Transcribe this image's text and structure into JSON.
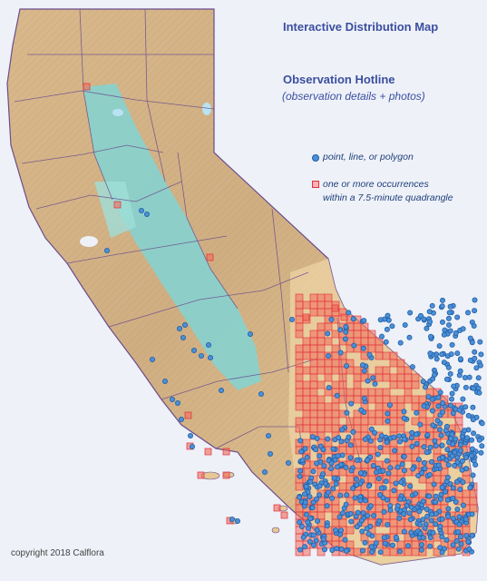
{
  "header": {
    "title_link": "Interactive Distribution Map",
    "hotline_link": "Observation Hotline",
    "hotline_subtitle": "(observation details + photos)"
  },
  "legend": {
    "point_label": "point, line, or polygon",
    "quad_label_line1": "one or more occurrences",
    "quad_label_line2": "within a 7.5-minute quadrangle"
  },
  "footer": {
    "copyright": "copyright 2018 Calflora"
  },
  "colors": {
    "point_fill": "#4d8fd6",
    "point_stroke": "#1f5fa6",
    "quad_fill": "#f26a5a",
    "quad_stroke": "#e0303a",
    "link": "#3b4fa0",
    "ocean": "#eef1f8",
    "valley": "#7fcfcf",
    "mountains": "#d8b88e",
    "county_lines": "#6a4b8c"
  },
  "icons": {
    "point_marker": "blue-circle-icon",
    "quad_marker": "red-square-icon"
  }
}
